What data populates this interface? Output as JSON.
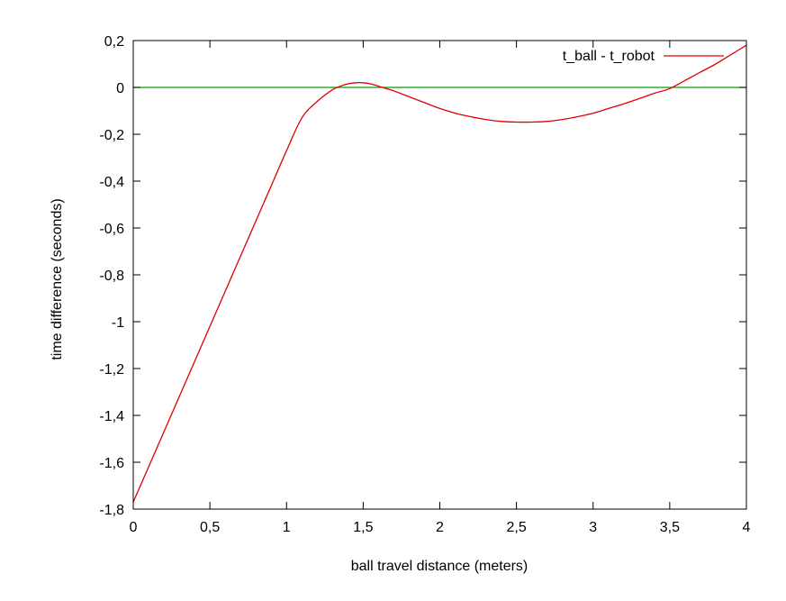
{
  "chart_data": {
    "type": "line",
    "title": "",
    "xlabel": "ball travel distance (meters)",
    "ylabel": "time difference (seconds)",
    "xlim": [
      0,
      4
    ],
    "ylim": [
      -1.8,
      0.2
    ],
    "x_ticks": [
      0,
      0.5,
      1,
      1.5,
      2,
      2.5,
      3,
      3.5,
      4
    ],
    "x_tick_labels": [
      "0",
      "0,5",
      "1",
      "1,5",
      "2",
      "2,5",
      "3",
      "3,5",
      "4"
    ],
    "y_ticks": [
      0.2,
      0,
      -0.2,
      -0.4,
      -0.6,
      -0.8,
      -1,
      -1.2,
      -1.4,
      -1.6,
      -1.8
    ],
    "y_tick_labels": [
      "0,2",
      "0",
      "-0,2",
      "-0,4",
      "-0,6",
      "-0,8",
      "-1",
      "-1,2",
      "-1,4",
      "-1,6",
      "-1,8"
    ],
    "grid": false,
    "legend_position": "top-right",
    "reference_line": {
      "y": 0,
      "color": "#00a000"
    },
    "series": [
      {
        "name": "t_ball - t_robot",
        "color": "#e00000",
        "x": [
          0,
          0.1,
          0.2,
          0.3,
          0.4,
          0.5,
          0.6,
          0.7,
          0.8,
          0.9,
          1.0,
          1.1,
          1.2,
          1.3,
          1.35,
          1.4,
          1.45,
          1.5,
          1.55,
          1.6,
          1.65,
          1.7,
          1.8,
          1.9,
          2.0,
          2.1,
          2.2,
          2.3,
          2.4,
          2.5,
          2.6,
          2.7,
          2.8,
          2.9,
          3.0,
          3.1,
          3.2,
          3.3,
          3.4,
          3.5,
          3.6,
          3.7,
          3.8,
          3.9,
          4.0
        ],
        "y": [
          -1.77,
          -1.62,
          -1.47,
          -1.32,
          -1.17,
          -1.02,
          -0.87,
          -0.72,
          -0.57,
          -0.42,
          -0.27,
          -0.13,
          -0.06,
          -0.01,
          0.005,
          0.015,
          0.02,
          0.02,
          0.015,
          0.005,
          -0.005,
          -0.015,
          -0.04,
          -0.065,
          -0.09,
          -0.11,
          -0.125,
          -0.137,
          -0.145,
          -0.148,
          -0.148,
          -0.145,
          -0.137,
          -0.125,
          -0.11,
          -0.09,
          -0.07,
          -0.048,
          -0.025,
          -0.005,
          0.03,
          0.065,
          0.1,
          0.14,
          0.18
        ]
      }
    ]
  }
}
